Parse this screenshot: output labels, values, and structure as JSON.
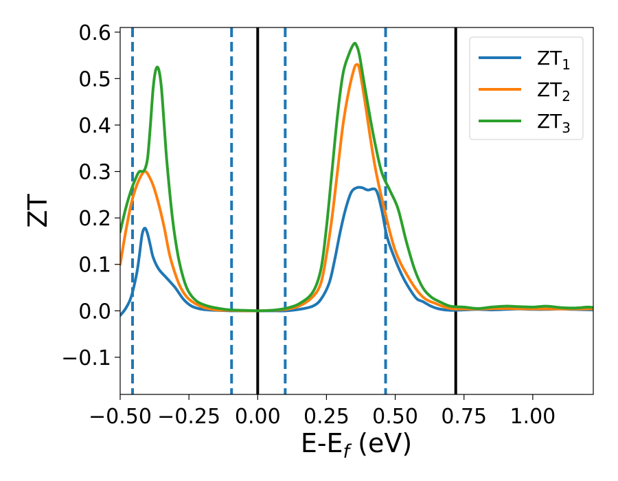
{
  "chart_data": {
    "type": "line",
    "title": "",
    "xlabel": "E-E",
    "xlabel_sub": "f",
    "xlabel_unit": " (eV)",
    "ylabel": "ZT",
    "xlim": [
      -0.5,
      1.22
    ],
    "ylim": [
      -0.18,
      0.61
    ],
    "x_ticks": [
      -0.5,
      -0.25,
      0.0,
      0.25,
      0.5,
      0.75,
      1.0
    ],
    "x_tick_labels": [
      "−0.50",
      "−0.25",
      "0.00",
      "0.25",
      "0.50",
      "0.75",
      "1.00"
    ],
    "y_ticks": [
      -0.1,
      0.0,
      0.1,
      0.2,
      0.3,
      0.4,
      0.5,
      0.6
    ],
    "y_tick_labels": [
      "−0.1",
      "0.0",
      "0.1",
      "0.2",
      "0.3",
      "0.4",
      "0.5",
      "0.6"
    ],
    "grid": false,
    "legend_position": "top-right",
    "vlines_dashed": {
      "color": "#1f77b4",
      "x": [
        -0.455,
        -0.095,
        0.1,
        0.465
      ]
    },
    "vlines_solid": {
      "color": "#000000",
      "x": [
        0.0,
        0.72
      ]
    },
    "series": [
      {
        "name": "ZT",
        "name_sub": "1",
        "color": "#1f77b4",
        "x": [
          -0.5,
          -0.48,
          -0.46,
          -0.44,
          -0.43,
          -0.42,
          -0.41,
          -0.4,
          -0.39,
          -0.38,
          -0.36,
          -0.33,
          -0.3,
          -0.27,
          -0.24,
          -0.2,
          -0.15,
          -0.1,
          -0.05,
          0.0,
          0.05,
          0.1,
          0.15,
          0.2,
          0.23,
          0.26,
          0.28,
          0.3,
          0.32,
          0.34,
          0.36,
          0.38,
          0.4,
          0.43,
          0.45,
          0.47,
          0.5,
          0.53,
          0.56,
          0.58,
          0.6,
          0.63,
          0.66,
          0.7,
          0.75,
          0.8,
          0.85,
          0.9,
          0.95,
          1.0,
          1.05,
          1.1,
          1.15,
          1.22
        ],
        "y": [
          -0.01,
          0.005,
          0.03,
          0.08,
          0.12,
          0.165,
          0.178,
          0.165,
          0.14,
          0.115,
          0.09,
          0.07,
          0.05,
          0.025,
          0.01,
          0.003,
          0.001,
          0.0,
          0.0,
          0.0,
          0.0,
          0.0,
          0.003,
          0.01,
          0.025,
          0.06,
          0.11,
          0.17,
          0.22,
          0.255,
          0.265,
          0.265,
          0.26,
          0.26,
          0.22,
          0.16,
          0.11,
          0.07,
          0.04,
          0.025,
          0.02,
          0.01,
          0.004,
          0.001,
          0.002,
          0.003,
          0.002,
          0.003,
          0.004,
          0.003,
          0.003,
          0.004,
          0.003,
          0.002
        ]
      },
      {
        "name": "ZT",
        "name_sub": "2",
        "color": "#ff7f0e",
        "x": [
          -0.5,
          -0.48,
          -0.46,
          -0.44,
          -0.42,
          -0.41,
          -0.4,
          -0.38,
          -0.36,
          -0.34,
          -0.32,
          -0.3,
          -0.28,
          -0.25,
          -0.2,
          -0.15,
          -0.1,
          -0.05,
          0.0,
          0.05,
          0.1,
          0.15,
          0.2,
          0.23,
          0.25,
          0.27,
          0.29,
          0.31,
          0.33,
          0.35,
          0.36,
          0.37,
          0.39,
          0.41,
          0.43,
          0.46,
          0.5,
          0.55,
          0.6,
          0.65,
          0.7,
          0.75,
          0.8,
          0.9,
          1.0,
          1.1,
          1.22
        ],
        "y": [
          0.1,
          0.17,
          0.23,
          0.27,
          0.295,
          0.3,
          0.295,
          0.27,
          0.23,
          0.18,
          0.12,
          0.08,
          0.05,
          0.025,
          0.008,
          0.002,
          0.001,
          0.0,
          0.0,
          0.001,
          0.003,
          0.01,
          0.03,
          0.06,
          0.12,
          0.2,
          0.3,
          0.4,
          0.47,
          0.52,
          0.53,
          0.52,
          0.45,
          0.37,
          0.3,
          0.22,
          0.13,
          0.07,
          0.03,
          0.015,
          0.005,
          0.004,
          0.004,
          0.005,
          0.004,
          0.004,
          0.004
        ]
      },
      {
        "name": "ZT",
        "name_sub": "3",
        "color": "#2ca02c",
        "x": [
          -0.5,
          -0.48,
          -0.46,
          -0.44,
          -0.43,
          -0.42,
          -0.41,
          -0.4,
          -0.39,
          -0.38,
          -0.37,
          -0.36,
          -0.35,
          -0.34,
          -0.33,
          -0.31,
          -0.29,
          -0.27,
          -0.25,
          -0.22,
          -0.18,
          -0.14,
          -0.1,
          -0.05,
          0.0,
          0.05,
          0.1,
          0.15,
          0.2,
          0.23,
          0.25,
          0.27,
          0.29,
          0.31,
          0.33,
          0.35,
          0.36,
          0.37,
          0.39,
          0.42,
          0.45,
          0.48,
          0.51,
          0.54,
          0.57,
          0.6,
          0.63,
          0.66,
          0.7,
          0.75,
          0.8,
          0.85,
          0.9,
          0.95,
          1.0,
          1.05,
          1.1,
          1.15,
          1.2,
          1.22
        ],
        "y": [
          0.17,
          0.22,
          0.26,
          0.29,
          0.3,
          0.3,
          0.305,
          0.33,
          0.4,
          0.48,
          0.52,
          0.52,
          0.48,
          0.4,
          0.32,
          0.2,
          0.12,
          0.07,
          0.04,
          0.02,
          0.01,
          0.005,
          0.002,
          0.001,
          0.0,
          0.001,
          0.005,
          0.015,
          0.04,
          0.09,
          0.18,
          0.3,
          0.42,
          0.51,
          0.55,
          0.575,
          0.57,
          0.55,
          0.48,
          0.38,
          0.3,
          0.26,
          0.22,
          0.15,
          0.09,
          0.05,
          0.03,
          0.02,
          0.01,
          0.008,
          0.005,
          0.008,
          0.01,
          0.009,
          0.008,
          0.01,
          0.007,
          0.006,
          0.008,
          0.007
        ]
      }
    ]
  }
}
